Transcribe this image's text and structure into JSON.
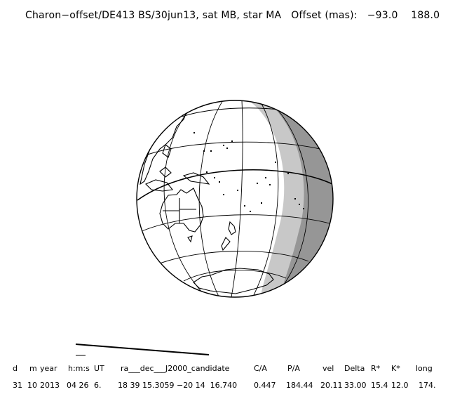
{
  "title": "Charon−offset/DE413 BS/30jun13, sat MB, star MA   Offset (mas):   −93.0    188.0",
  "globe": {
    "colors": {
      "sphere": "#ffffff",
      "penumbra": "#c8c8c8",
      "night": "#969696",
      "lines": "#000000"
    }
  },
  "table": {
    "headers": [
      "d",
      "m",
      "year",
      "h:m:s",
      "UT",
      "ra___dec___J2000_candidate",
      "C/A",
      "P/A",
      "vel",
      "Delta",
      "R*",
      "K*",
      "long"
    ],
    "values": [
      "31",
      "10",
      "2013",
      "04 26",
      "6.",
      "18 39 15.3059 −20 14  16.740",
      "0.447",
      "184.44",
      "20.11",
      "33.00",
      "15.4",
      "12.0",
      "174."
    ]
  }
}
